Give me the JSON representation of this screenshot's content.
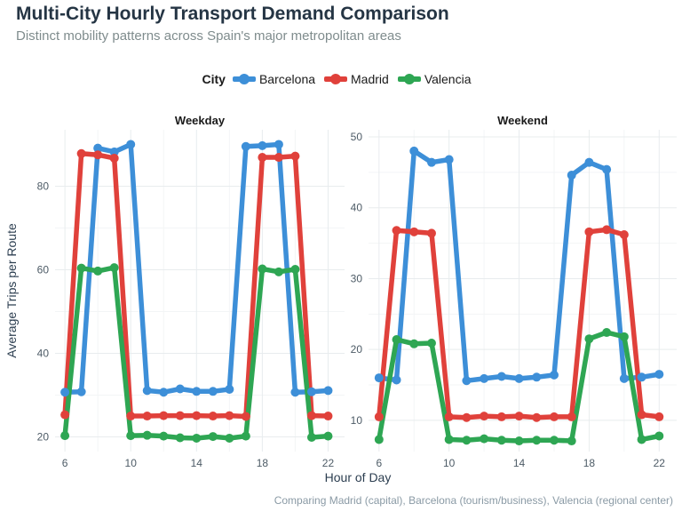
{
  "chart_data": {
    "type": "line",
    "title": "Multi-City Hourly Transport Demand Comparison",
    "subtitle": "Distinct mobility patterns across Spain's major metropolitan areas",
    "caption": "Comparing Madrid (capital), Barcelona (tourism/business), Valencia (regional center)",
    "xlabel": "Hour of Day",
    "ylabel": "Average Trips per Route",
    "legend": {
      "title": "City",
      "position": "top"
    },
    "colors": {
      "Barcelona": "#3d8fd8",
      "Madrid": "#e0413b",
      "Valencia": "#2ea653"
    },
    "grid": true,
    "panels": [
      {
        "title": "Weekday",
        "xlim": [
          5.4,
          23.0
        ],
        "ylim": [
          16.5,
          93.5
        ],
        "xticks": [
          6,
          10,
          14,
          18,
          22
        ],
        "yticks": [
          20,
          40,
          60,
          80
        ],
        "x": [
          6,
          7,
          8,
          9,
          10,
          11,
          12,
          13,
          14,
          15,
          16,
          17,
          18,
          19,
          20,
          21,
          22
        ],
        "series": [
          {
            "name": "Barcelona",
            "values": [
              30.7,
              30.8,
              89.1,
              88.2,
              90.0,
              31.1,
              30.7,
              31.5,
              30.9,
              30.9,
              31.4,
              89.5,
              89.7,
              90.0,
              30.7,
              30.8,
              31.1
            ]
          },
          {
            "name": "Madrid",
            "values": [
              25.3,
              87.8,
              87.5,
              86.7,
              25.0,
              25.0,
              25.1,
              25.1,
              25.1,
              25.0,
              25.1,
              24.9,
              86.9,
              86.9,
              87.2,
              25.1,
              25.0
            ]
          },
          {
            "name": "Valencia",
            "values": [
              20.3,
              60.4,
              59.7,
              60.5,
              20.3,
              20.4,
              20.2,
              19.8,
              19.7,
              20.1,
              19.7,
              20.2,
              60.2,
              59.5,
              60.1,
              19.9,
              20.2
            ]
          }
        ]
      },
      {
        "title": "Weekend",
        "xlim": [
          5.4,
          23.0
        ],
        "ylim": [
          5.6,
          51.0
        ],
        "xticks": [
          6,
          10,
          14,
          18,
          22
        ],
        "yticks": [
          10,
          20,
          30,
          40,
          50
        ],
        "x": [
          6,
          7,
          8,
          9,
          10,
          11,
          12,
          13,
          14,
          15,
          16,
          17,
          18,
          19,
          20,
          21,
          22
        ],
        "series": [
          {
            "name": "Barcelona",
            "values": [
              16.0,
              15.7,
              48.0,
              46.4,
              46.8,
              15.6,
              15.9,
              16.2,
              15.9,
              16.1,
              16.4,
              44.6,
              46.4,
              45.4,
              15.9,
              16.1,
              16.5
            ]
          },
          {
            "name": "Madrid",
            "values": [
              10.5,
              36.8,
              36.6,
              36.4,
              10.5,
              10.4,
              10.6,
              10.5,
              10.6,
              10.4,
              10.5,
              10.5,
              36.6,
              36.9,
              36.2,
              10.8,
              10.5
            ]
          },
          {
            "name": "Valencia",
            "values": [
              7.3,
              21.4,
              20.8,
              20.9,
              7.3,
              7.2,
              7.4,
              7.2,
              7.1,
              7.2,
              7.2,
              7.1,
              21.5,
              22.4,
              21.8,
              7.3,
              7.8
            ]
          }
        ]
      }
    ]
  }
}
